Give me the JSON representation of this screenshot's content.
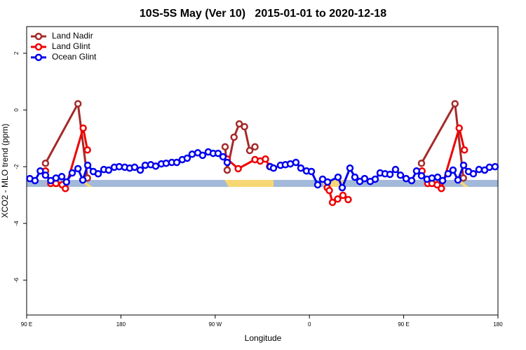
{
  "chart_data": {
    "type": "line",
    "title": "10S-5S May (Ver 10)   2015-01-01 to 2020-12-18",
    "x_label": "Longitude",
    "y_label": "XCO2 - MLO trend (ppm)",
    "xlim": [
      90,
      540
    ],
    "xticks": [
      {
        "value": 90,
        "label": "90 E"
      },
      180,
      {
        "value": 270,
        "label": "90 W"
      },
      {
        "value": 360,
        "label": "0"
      },
      {
        "value": 450,
        "label": "90 E"
      },
      {
        "value": 540,
        "label": "180"
      }
    ],
    "ylim": [
      -7.23,
      2.94
    ],
    "yticks": [
      -6,
      -4,
      -2,
      0,
      2
    ],
    "legend": "top-left",
    "series": [
      {
        "name": "Land Nadir",
        "color": "#a52a2a",
        "x": [
          108,
          139,
          148,
          200,
          279.5,
          281.5,
          288,
          293,
          298,
          303,
          308,
          400,
          467,
          499,
          507
        ],
        "values": [
          -1.88,
          0.22,
          -2.4,
          null,
          -1.3,
          -2.12,
          -0.96,
          -0.49,
          -0.59,
          -1.43,
          -1.3,
          null,
          -1.88,
          0.22,
          -2.4
        ]
      },
      {
        "name": "Land Glint",
        "color": "#ee0000",
        "x": [
          108,
          113,
          118,
          124,
          127,
          144,
          148,
          200,
          281.5,
          292,
          308,
          313,
          318,
          322,
          345,
          377,
          379,
          382,
          387,
          392,
          397,
          440,
          467.5,
          473,
          477,
          482,
          486,
          503,
          508
        ],
        "values": [
          -2.15,
          -2.59,
          -2.59,
          -2.64,
          -2.77,
          -0.64,
          -1.41,
          null,
          -1.73,
          -2.07,
          -1.75,
          -1.8,
          -1.73,
          -1.99,
          null,
          -2.74,
          -2.84,
          -3.26,
          -3.14,
          -3.01,
          -3.16,
          null,
          -2.15,
          -2.59,
          -2.59,
          -2.64,
          -2.77,
          -0.64,
          -1.41
        ]
      },
      {
        "name": "Ocean Glint",
        "color": "#0000ee",
        "x": [
          93,
          98,
          103,
          108,
          113,
          118,
          123.5,
          128,
          133.5,
          139,
          143.6,
          148.3,
          153.6,
          158.3,
          163.7,
          168.3,
          173.7,
          178.4,
          183.7,
          188.4,
          193.1,
          198.5,
          203.2,
          208.5,
          213.2,
          218.6,
          223.2,
          228.6,
          233.3,
          238.6,
          243.3,
          248,
          253.4,
          258,
          263.4,
          268.1,
          272.8,
          277.5,
          281.5,
          300,
          322.5,
          325.7,
          332.4,
          337,
          341.8,
          347.1,
          351.8,
          357.2,
          361.9,
          367.9,
          372.6,
          377.3,
          387.3,
          391.3,
          398.7,
          403.4,
          408.1,
          412.7,
          418.1,
          422.8,
          427.5,
          432.2,
          436.9,
          442.2,
          446.9,
          452.3,
          457.6,
          462.3,
          467,
          472.3,
          477,
          482.4,
          487.1,
          492.4,
          497.1,
          501.8,
          507.2,
          511.9,
          516.5,
          521.9,
          527.3,
          531.9,
          537.3
        ],
        "values": [
          -2.42,
          -2.49,
          -2.15,
          -2.3,
          -2.49,
          -2.4,
          -2.35,
          -2.54,
          -2.22,
          -2.07,
          -2.47,
          -1.95,
          -2.17,
          -2.25,
          -2.1,
          -2.12,
          -2.02,
          -2.0,
          -2.02,
          -2.05,
          -2.02,
          -2.12,
          -1.95,
          -1.93,
          -1.98,
          -1.9,
          -1.88,
          -1.85,
          -1.85,
          -1.75,
          -1.7,
          -1.56,
          -1.51,
          -1.6,
          -1.48,
          -1.53,
          -1.53,
          -1.65,
          -1.85,
          null,
          -2.0,
          -2.05,
          -1.95,
          -1.93,
          -1.9,
          -1.85,
          -2.05,
          -2.15,
          -2.17,
          -2.64,
          -2.44,
          -2.54,
          -2.37,
          -2.74,
          -2.05,
          -2.37,
          -2.52,
          -2.42,
          -2.52,
          -2.44,
          -2.22,
          -2.25,
          -2.27,
          -2.1,
          -2.3,
          -2.42,
          -2.49,
          -2.15,
          -2.32,
          -2.44,
          -2.4,
          -2.37,
          -2.49,
          -2.25,
          -2.12,
          -2.47,
          -1.95,
          -2.17,
          -2.25,
          -2.1,
          -2.12,
          -2.02,
          -2.0
        ]
      }
    ]
  }
}
